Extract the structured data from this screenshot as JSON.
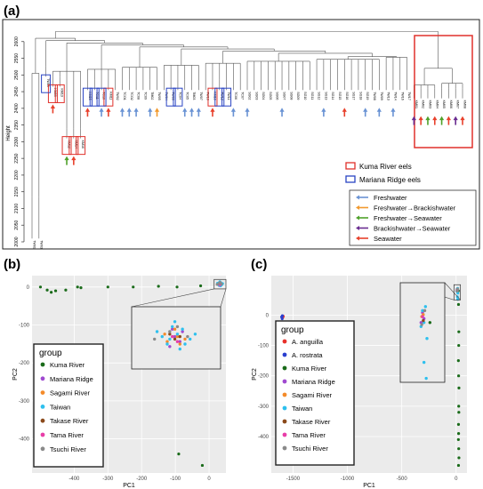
{
  "panel_labels": {
    "a": "(a)",
    "b": "(b)",
    "c": "(c)"
  },
  "colors": {
    "freshwater": "#6a93d4",
    "freshwater_to_brackishwater": "#f29a2e",
    "freshwater_to_seawater": "#4fa12a",
    "brackishwater_to_seawater": "#6a2d91",
    "seawater": "#e8412c",
    "kuma_box": "#e0312b",
    "mariana_box": "#2a44c4",
    "kuma_river": "#1a6b1a",
    "mariana_ridge": "#a04ad0",
    "sagami_river": "#f48b2a",
    "taiwan": "#2ec0ee",
    "takase_river": "#8b4a1b",
    "tama_river": "#e83ea8",
    "tsuchi_river": "#8a8a8a",
    "a_anguilla": "#e8312b",
    "a_rostrata": "#2a3fcf",
    "plot_bg": "#ebebeb"
  },
  "chart_data": [
    {
      "type": "dendrogram",
      "panel": "(a)",
      "ylabel": "Height",
      "ylim": [
        2000,
        2650
      ],
      "yticks": [
        "2000",
        "2050",
        "2100",
        "2150",
        "2200",
        "2250",
        "2300",
        "2350",
        "2400",
        "2450",
        "2500",
        "2550",
        "2600"
      ],
      "leaves": [
        "TW01",
        "TW03",
        "TW15",
        "KM09",
        "KM13",
        "KM12",
        "KM14",
        "KM16",
        "KM15",
        "TC11",
        "TC10",
        "KM11",
        "TW02",
        "TCO1",
        "TCO2",
        "TC08",
        "TC09",
        "TM02",
        "TW05",
        "TW04",
        "TW06",
        "TC04",
        "TC05",
        "TM03",
        "TW07",
        "TW10",
        "KM10",
        "TW12",
        "TW11",
        "TC06",
        "TC07",
        "SG02",
        "SG03",
        "SG04",
        "SG05",
        "SG06",
        "SG07",
        "SG08",
        "SG09",
        "SG10",
        "SG11",
        "SG12",
        "SG13",
        "SG14",
        "SG15",
        "SG16",
        "SG17",
        "SG18",
        "SG19",
        "TW08",
        "TW09",
        "TW13",
        "TW14",
        "TW16",
        "TW17",
        "KM01",
        "KM02",
        "KM03",
        "KM04",
        "KM05",
        "KM06",
        "KM07",
        "KM08"
      ],
      "legend_boxes": [
        {
          "label": "Kuma River eels",
          "edge": "#e0312b"
        },
        {
          "label": "Mariana Ridge eels",
          "edge": "#2a44c4"
        }
      ],
      "legend_arrows": [
        {
          "label": "Freshwater",
          "color": "#6a93d4"
        },
        {
          "label": "Freshwater→Brackishwater",
          "color": "#f29a2e"
        },
        {
          "label": "Freshwater→Seawater",
          "color": "#4fa12a"
        },
        {
          "label": "Brackishwater→Seawater",
          "color": "#6a2d91"
        },
        {
          "label": "Seawater",
          "color": "#e8412c"
        }
      ]
    },
    {
      "type": "scatter",
      "panel": "(b)",
      "xlabel": "PC1",
      "ylabel": "PC2",
      "xlim": [
        -525,
        50
      ],
      "ylim": [
        -490,
        30
      ],
      "xticks": [
        -400,
        -300,
        -200,
        -100,
        0
      ],
      "yticks": [
        -400,
        -300,
        -200,
        -100,
        0
      ],
      "legend_title": "group",
      "series": [
        {
          "name": "Kuma River",
          "color": "#1a6b1a",
          "points": [
            [
              -500,
              0
            ],
            [
              -480,
              -8
            ],
            [
              -468,
              -14
            ],
            [
              -455,
              -10
            ],
            [
              -425,
              -8
            ],
            [
              -390,
              0
            ],
            [
              -380,
              -2
            ],
            [
              -300,
              0
            ],
            [
              -225,
              0
            ],
            [
              -150,
              2
            ],
            [
              -95,
              0
            ],
            [
              -25,
              3
            ],
            [
              -90,
              -440
            ],
            [
              -20,
              -470
            ]
          ]
        },
        {
          "name": "Mariana Ridge",
          "color": "#a04ad0",
          "points": [
            [
              32,
              8
            ],
            [
              34,
              6
            ],
            [
              30,
              4
            ],
            [
              35,
              10
            ],
            [
              31,
              11
            ]
          ]
        },
        {
          "name": "Sagami River",
          "color": "#f48b2a",
          "points": [
            [
              33,
              8
            ],
            [
              36,
              7
            ],
            [
              29,
              6
            ],
            [
              34,
              5
            ],
            [
              32,
              11
            ],
            [
              28,
              9
            ]
          ]
        },
        {
          "name": "Taiwan",
          "color": "#2ec0ee",
          "points": [
            [
              30,
              7
            ],
            [
              33,
              9
            ],
            [
              36,
              5
            ],
            [
              31,
              12
            ],
            [
              27,
              8
            ],
            [
              35,
              11
            ],
            [
              29,
              5
            ],
            [
              38,
              7
            ],
            [
              32,
              14
            ],
            [
              25,
              10
            ],
            [
              34,
              3
            ],
            [
              40,
              9
            ]
          ]
        },
        {
          "name": "Takase River",
          "color": "#8b4a1b",
          "points": [
            [
              32,
              7
            ],
            [
              30,
              9
            ],
            [
              34,
              8
            ]
          ]
        },
        {
          "name": "Tama River",
          "color": "#e83ea8",
          "points": [
            [
              31,
              8
            ],
            [
              33,
              6
            ]
          ]
        },
        {
          "name": "Tsuchi River",
          "color": "#8a8a8a",
          "points": [
            [
              30,
              10
            ],
            [
              37,
              8
            ],
            [
              24,
              7
            ],
            [
              33,
              12
            ]
          ]
        }
      ]
    },
    {
      "type": "scatter",
      "panel": "(c)",
      "xlabel": "PC1",
      "ylabel": "PC2",
      "xlim": [
        -1700,
        100
      ],
      "ylim": [
        -520,
        130
      ],
      "xticks": [
        -1500,
        -1000,
        -500,
        0
      ],
      "yticks": [
        -400,
        -300,
        -200,
        -100,
        0
      ],
      "legend_title": "group",
      "series": [
        {
          "name": "A. anguilla",
          "color": "#e8312b",
          "points": [
            [
              -1595,
              -8
            ],
            [
              -1590,
              -4
            ]
          ]
        },
        {
          "name": "A. rostrata",
          "color": "#2a3fcf",
          "points": [
            [
              -1600,
              -12
            ],
            [
              -1605,
              -6
            ],
            [
              -1598,
              -2
            ]
          ]
        },
        {
          "name": "Kuma River",
          "color": "#1a6b1a",
          "points": [
            [
              20,
              80
            ],
            [
              22,
              35
            ],
            [
              25,
              -55
            ],
            [
              24,
              -100
            ],
            [
              21,
              -150
            ],
            [
              23,
              -200
            ],
            [
              26,
              -240
            ],
            [
              24,
              -300
            ],
            [
              25,
              -320
            ],
            [
              22,
              -360
            ],
            [
              23,
              -390
            ],
            [
              21,
              -410
            ],
            [
              24,
              -440
            ],
            [
              26,
              -470
            ],
            [
              22,
              -495
            ]
          ]
        },
        {
          "name": "Mariana Ridge",
          "color": "#a04ad0",
          "points": [
            [
              10,
              85
            ],
            [
              12,
              82
            ],
            [
              8,
              80
            ]
          ]
        },
        {
          "name": "Sagami River",
          "color": "#f48b2a",
          "points": [
            [
              11,
              84
            ],
            [
              9,
              83
            ]
          ]
        },
        {
          "name": "Taiwan",
          "color": "#2ec0ee",
          "points": [
            [
              10,
              86
            ],
            [
              12,
              80
            ],
            [
              14,
              88
            ],
            [
              8,
              78
            ],
            [
              12,
              60
            ],
            [
              16,
              72
            ],
            [
              15,
              52
            ]
          ]
        },
        {
          "name": "Takase River",
          "color": "#8b4a1b",
          "points": [
            [
              11,
              81
            ]
          ]
        },
        {
          "name": "Tama River",
          "color": "#e83ea8",
          "points": [
            [
              10,
              83
            ]
          ]
        },
        {
          "name": "Tsuchi River",
          "color": "#8a8a8a",
          "points": [
            [
              13,
              86
            ],
            [
              9,
              79
            ]
          ]
        }
      ]
    }
  ]
}
